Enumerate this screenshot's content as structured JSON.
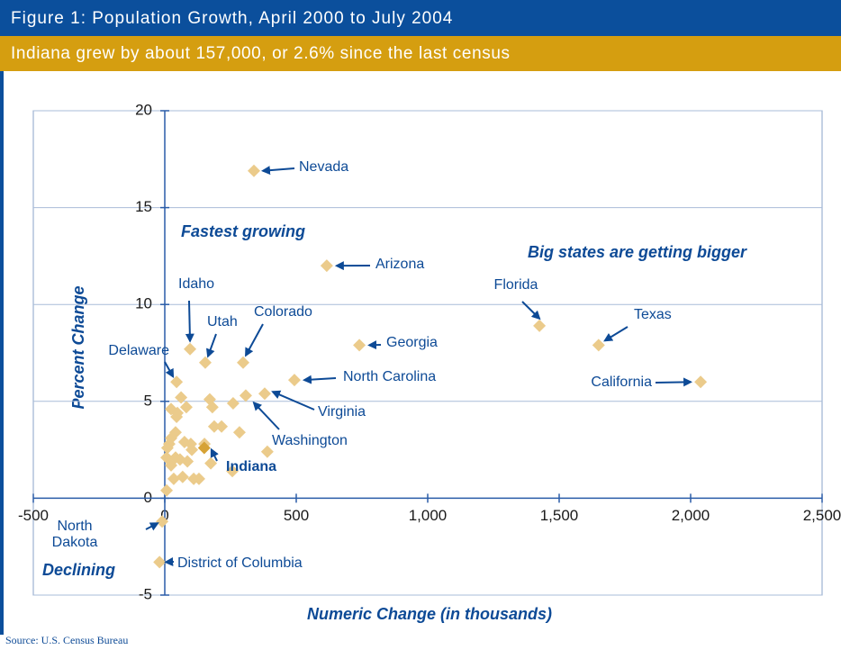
{
  "chart_data": {
    "type": "scatter",
    "title": "Figure 1: Population Growth, April 2000 to July 2004",
    "subtitle": "Indiana grew by about 157,000, or 2.6% since the last census",
    "x_label": "Numeric Change (in thousands)",
    "y_label": "Percent Change",
    "annotations": [
      "Fastest growing",
      "Big states are getting bigger",
      "Declining"
    ],
    "source": "Source: U.S. Census Bureau",
    "xlim": [
      -500,
      2500
    ],
    "xticks": [
      -500,
      0,
      500,
      {
        "value": 1000,
        "label": "1,000"
      },
      {
        "value": 1500,
        "label": "1,500"
      },
      {
        "value": 2000,
        "label": "2,000"
      },
      {
        "value": 2500,
        "label": "2,500"
      }
    ],
    "ylim": [
      -5,
      20
    ],
    "yticks": [
      -5,
      0,
      5,
      10,
      15,
      20
    ],
    "grid": true,
    "series": [
      {
        "color": "#ebcb8b",
        "labels": [
          "Nevada",
          "Arizona",
          "Florida",
          "Texas",
          "California",
          "Georgia",
          "North Carolina",
          "Virginia",
          "Washington",
          "Colorado",
          "Utah",
          "Idaho",
          "Delaware",
          "North Dakota",
          "District of Columbia",
          null,
          null,
          null,
          null,
          null,
          null,
          null,
          null,
          null,
          null,
          null,
          null,
          null,
          null,
          null,
          null,
          null,
          null,
          null,
          null,
          null,
          null,
          null,
          null,
          null,
          null,
          null,
          null,
          null,
          null,
          null,
          null
        ],
        "x": [
          339,
          616,
          1425,
          1650,
          2038,
          740,
          493,
          380,
          308,
          298,
          154,
          96,
          45,
          -10,
          -20,
          62,
          24,
          48,
          82,
          45,
          171,
          181,
          260,
          188,
          216,
          284,
          41,
          24,
          17,
          10,
          75,
          99,
          103,
          151,
          390,
          7,
          41,
          58,
          86,
          24,
          175,
          34,
          68,
          110,
          130,
          257,
          7
        ],
        "values": [
          16.9,
          12.0,
          8.9,
          7.9,
          6.0,
          7.9,
          6.1,
          5.4,
          5.3,
          7.0,
          7.0,
          7.7,
          6.0,
          -1.2,
          -3.3,
          5.2,
          4.6,
          4.4,
          4.7,
          4.2,
          5.1,
          4.7,
          4.9,
          3.7,
          3.7,
          3.4,
          3.4,
          3.1,
          2.8,
          2.6,
          2.9,
          2.8,
          2.5,
          2.8,
          2.4,
          2.1,
          2.1,
          2.0,
          1.9,
          1.7,
          1.8,
          1.0,
          1.1,
          1.0,
          1.0,
          1.4,
          0.4
        ]
      },
      {
        "color": "#d6a235",
        "labels": [
          "Indiana"
        ],
        "x": [
          150
        ],
        "values": [
          2.6
        ]
      }
    ]
  }
}
